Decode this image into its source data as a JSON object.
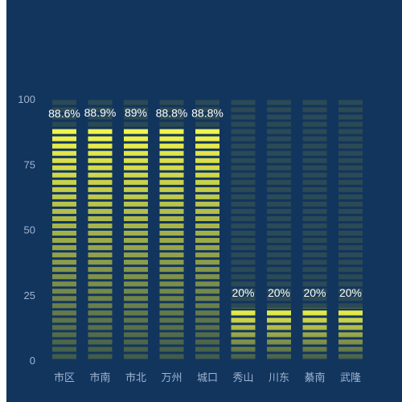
{
  "chart_data": {
    "type": "bar",
    "categories": [
      "市区",
      "市南",
      "市北",
      "万州",
      "城口",
      "秀山",
      "川东",
      "綦南",
      "武隆"
    ],
    "values": [
      88.6,
      88.9,
      89,
      88.8,
      88.8,
      20,
      20,
      20,
      20
    ],
    "data_labels": [
      "88.6%",
      "88.9%",
      "89%",
      "88.8%",
      "88.8%",
      "20%",
      "20%",
      "20%",
      "20%"
    ],
    "ylim": [
      0,
      100
    ],
    "yticks": [
      "0",
      "25",
      "50",
      "75",
      "100"
    ],
    "grid": false,
    "legend": "none",
    "style": "segmented-pictorial-bar"
  },
  "colors": {
    "background": "#12355e",
    "bar_fill_top": "#f4f64a",
    "bar_fill_bottom": "#3f5a4a",
    "bar_empty": "#2b4a55",
    "axis_label": "#9fb4cf",
    "data_label": "#ffffff"
  }
}
